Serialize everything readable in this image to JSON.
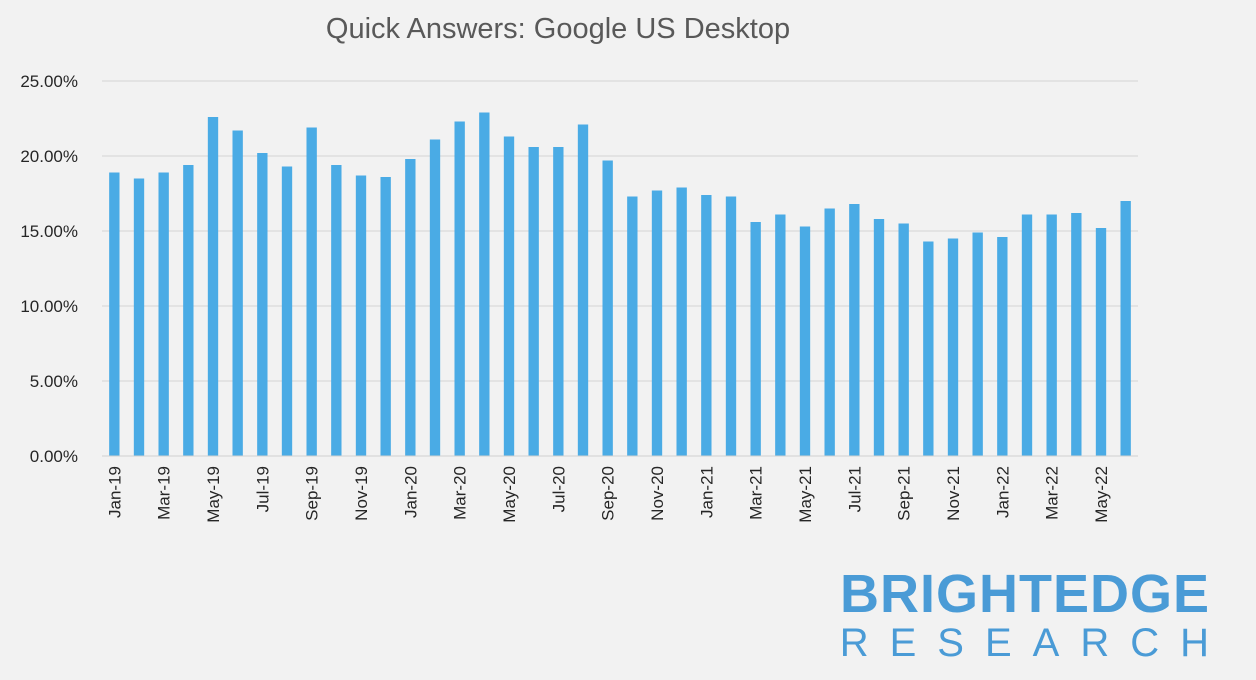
{
  "chart_data": {
    "type": "bar",
    "title": "Quick Answers: Google US Desktop",
    "xlabel": "",
    "ylabel": "",
    "ylim": [
      0,
      25
    ],
    "y_ticks": [
      "0.00%",
      "5.00%",
      "10.00%",
      "15.00%",
      "20.00%",
      "25.00%"
    ],
    "y_tick_values": [
      0,
      5,
      10,
      15,
      20,
      25
    ],
    "grid": true,
    "legend": "none",
    "bar_color": "#4aabe5",
    "categories": [
      "Jan-19",
      "Feb-19",
      "Mar-19",
      "Apr-19",
      "May-19",
      "Jun-19",
      "Jul-19",
      "Aug-19",
      "Sep-19",
      "Oct-19",
      "Nov-19",
      "Dec-19",
      "Jan-20",
      "Feb-20",
      "Mar-20",
      "Apr-20",
      "May-20",
      "Jun-20",
      "Jul-20",
      "Aug-20",
      "Sep-20",
      "Oct-20",
      "Nov-20",
      "Dec-20",
      "Jan-21",
      "Feb-21",
      "Mar-21",
      "Apr-21",
      "May-21",
      "Jun-21",
      "Jul-21",
      "Aug-21",
      "Sep-21",
      "Oct-21",
      "Nov-21",
      "Dec-21",
      "Jan-22",
      "Feb-22",
      "Mar-22",
      "Apr-22",
      "May-22",
      "Jun-22"
    ],
    "x_tick_labels": [
      "Jan-19",
      "Mar-19",
      "May-19",
      "Jul-19",
      "Sep-19",
      "Nov-19",
      "Jan-20",
      "Mar-20",
      "May-20",
      "Jul-20",
      "Sep-20",
      "Nov-20",
      "Jan-21",
      "Mar-21",
      "May-21",
      "Jul-21",
      "Sep-21",
      "Nov-21",
      "Jan-22",
      "Mar-22",
      "May-22"
    ],
    "values": [
      18.9,
      18.5,
      18.9,
      19.4,
      22.6,
      21.7,
      20.2,
      19.3,
      21.9,
      19.4,
      18.7,
      18.6,
      19.8,
      21.1,
      22.3,
      22.9,
      21.3,
      20.6,
      20.6,
      22.1,
      19.7,
      17.3,
      17.7,
      17.9,
      17.4,
      17.3,
      15.6,
      16.1,
      15.3,
      16.5,
      16.8,
      15.8,
      15.5,
      14.3,
      14.5,
      14.9,
      14.6,
      16.1,
      16.1,
      16.2,
      15.2,
      17.0
    ]
  },
  "logo": {
    "main": "BRIGHTEDGE",
    "sub": "RESEARCH",
    "color": "#4a9bd6"
  }
}
